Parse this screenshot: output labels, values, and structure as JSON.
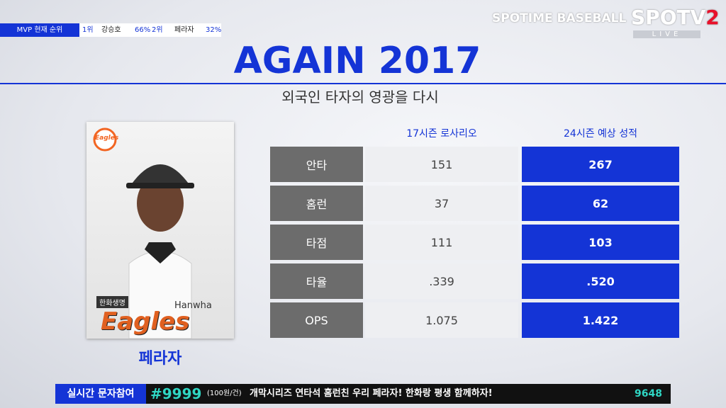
{
  "top_bar": {
    "label": "MVP 현재 순위",
    "entries": [
      {
        "rank": "1위",
        "name": "강승호",
        "pct": "66%"
      },
      {
        "rank": "2위",
        "name": "페라자",
        "pct": "32%"
      }
    ]
  },
  "broadcaster": {
    "program": "SPOTIME BASEBALL",
    "channel": "SPOTV",
    "number": "2",
    "live": "LIVE"
  },
  "header": {
    "title": "AGAIN 2017",
    "subtitle": "외국인 타자의 영광을 다시"
  },
  "player": {
    "name": "페라자",
    "card_texts": [
      "Eagles",
      "한화생명",
      "Hanwha"
    ]
  },
  "table": {
    "columns": [
      "17시즌 로사리오",
      "24시즌 예상 성적"
    ],
    "rows": [
      [
        "안타",
        "151",
        "267"
      ],
      [
        "홈런",
        "37",
        "62"
      ],
      [
        "타점",
        "111",
        "103"
      ],
      [
        "타율",
        ".339",
        ".520"
      ],
      [
        "OPS",
        "1.075",
        "1.422"
      ]
    ]
  },
  "bottom_bar": {
    "label": "실시간 문자참여",
    "number": "#9999",
    "price": "(100원/건)",
    "message": "개막시리즈 연타석 홈런친 우리 페라자! 한화랑 평생 함께하자!",
    "count": "9648"
  }
}
